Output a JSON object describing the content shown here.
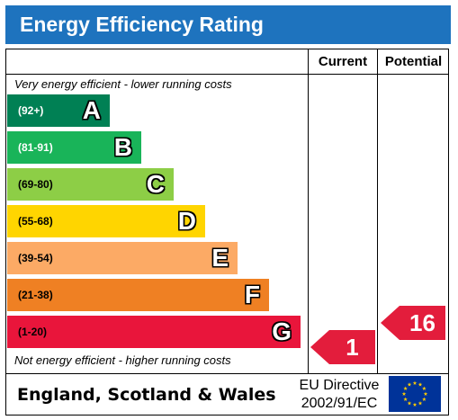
{
  "title": "Energy Efficiency Rating",
  "columns": {
    "current": "Current",
    "potential": "Potential"
  },
  "top_note": "Very energy efficient - lower running costs",
  "bottom_note": "Not energy efficient - higher running costs",
  "bands": [
    {
      "range": "(92+)",
      "letter": "A",
      "color": "#008054",
      "range_color": "#ffffff"
    },
    {
      "range": "(81-91)",
      "letter": "B",
      "color": "#19b459",
      "range_color": "#ffffff"
    },
    {
      "range": "(69-80)",
      "letter": "C",
      "color": "#8dce46",
      "range_color": "#000000"
    },
    {
      "range": "(55-68)",
      "letter": "D",
      "color": "#ffd500",
      "range_color": "#000000"
    },
    {
      "range": "(39-54)",
      "letter": "E",
      "color": "#fcaa65",
      "range_color": "#000000"
    },
    {
      "range": "(21-38)",
      "letter": "F",
      "color": "#ef8023",
      "range_color": "#000000"
    },
    {
      "range": "(1-20)",
      "letter": "G",
      "color": "#e9153b",
      "range_color": "#000000"
    }
  ],
  "ratings": {
    "current": {
      "value": "1",
      "band": "G"
    },
    "potential": {
      "value": "16",
      "band": "G"
    }
  },
  "footer": {
    "country": "England, Scotland & Wales",
    "directive_line1": "EU Directive",
    "directive_line2": "2002/91/EC"
  },
  "flag": {
    "icon": "eu-flag-icon",
    "background": "#003399",
    "star_color": "#ffcc00"
  }
}
